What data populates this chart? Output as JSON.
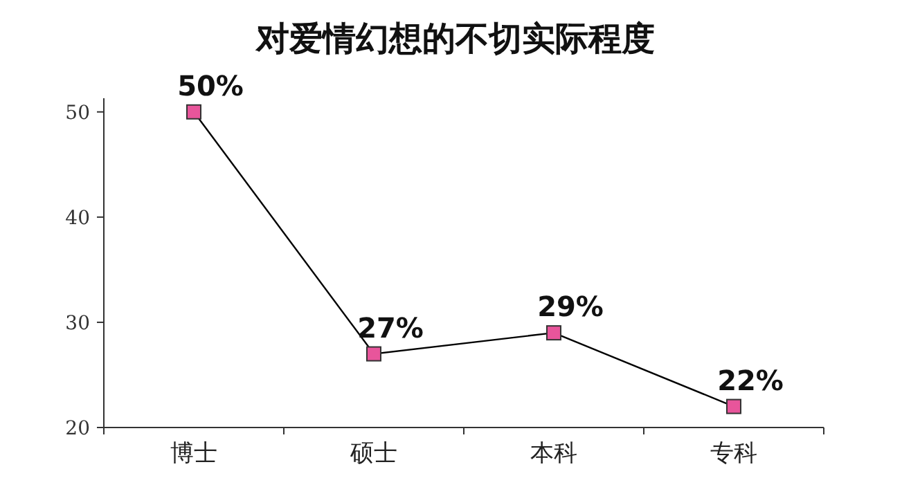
{
  "chart_data": {
    "type": "line",
    "title": "对爱情幻想的不切实际程度",
    "categories": [
      "博士",
      "硕士",
      "本科",
      "专科"
    ],
    "values": [
      50,
      27,
      29,
      22
    ],
    "value_labels": [
      "50%",
      "27%",
      "29%",
      "22%"
    ],
    "color": "#000000",
    "colors": [
      "#e8559b",
      "#e8559b",
      "#e8559b",
      "#e8559b"
    ],
    "marker": "square",
    "ylim": [
      20,
      51.3
    ],
    "yticks": [
      20,
      30,
      40,
      50
    ]
  }
}
